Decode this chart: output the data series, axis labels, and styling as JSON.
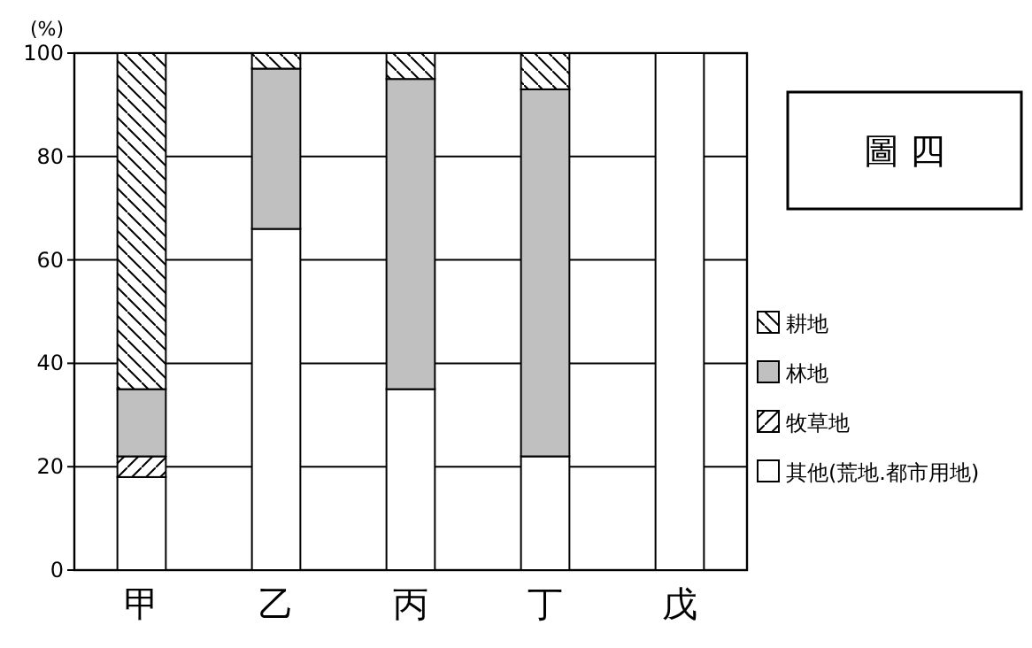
{
  "chart_data": {
    "type": "bar",
    "title": "圖 四",
    "ylabel": "(%)",
    "stacked": true,
    "categories": [
      "甲",
      "乙",
      "丙",
      "丁",
      "戊"
    ],
    "series": [
      {
        "name": "其他(荒地.都市用地)",
        "color": "#ffffff",
        "values": [
          18,
          66,
          35,
          22,
          100
        ]
      },
      {
        "name": "牧草地",
        "color": "#000000",
        "values": [
          4,
          0,
          0,
          0,
          0
        ]
      },
      {
        "name": "林地",
        "color": "#c0c0c0",
        "values": [
          13,
          31,
          60,
          71,
          0
        ]
      },
      {
        "name": "耕地",
        "color": "#000000",
        "values": [
          65,
          3,
          5,
          7,
          0
        ]
      }
    ],
    "ylim": [
      0,
      100
    ],
    "yticks": [
      0,
      20,
      40,
      60,
      80,
      100
    ],
    "grid": "y",
    "legend": "right"
  }
}
